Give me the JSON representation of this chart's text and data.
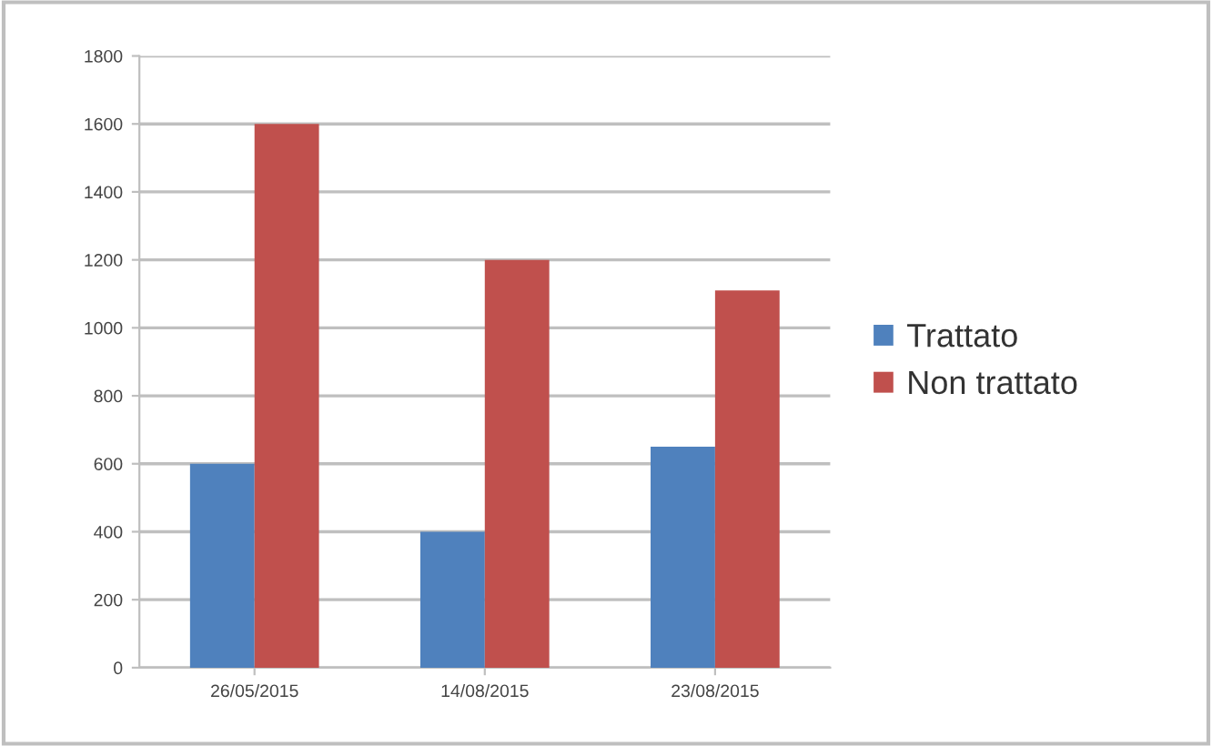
{
  "chart_data": {
    "type": "bar",
    "categories": [
      "26/05/2015",
      "14/08/2015",
      "23/08/2015"
    ],
    "series": [
      {
        "name": "Trattato",
        "color": "#4f81bd",
        "values": [
          600,
          400,
          650
        ]
      },
      {
        "name": "Non trattato",
        "color": "#c0504d",
        "values": [
          1600,
          1200,
          1110
        ]
      }
    ],
    "ylim": [
      0,
      1800
    ],
    "yticks": [
      0,
      200,
      400,
      600,
      800,
      1000,
      1200,
      1400,
      1600,
      1800
    ],
    "grid": "y",
    "legend": "right"
  }
}
